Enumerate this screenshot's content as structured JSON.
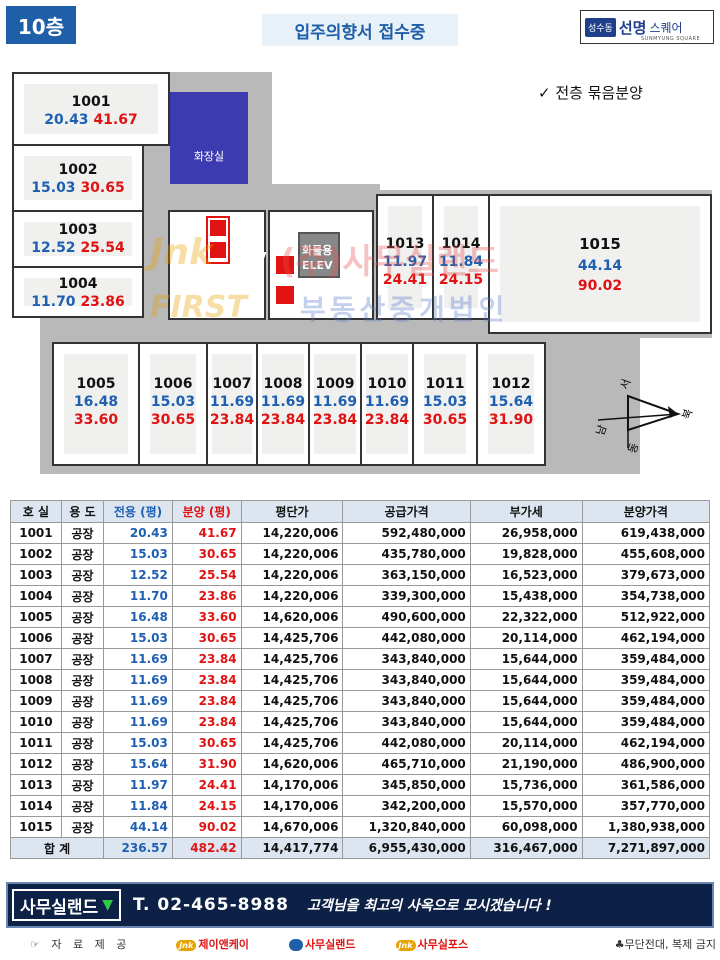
{
  "header": {
    "floor_badge": "10층",
    "notice": "입주의향서 접수중",
    "brand_tag": "성수동",
    "brand_name": "선명",
    "brand_suffix": "스퀘어",
    "brand_sub": "SUNMYUNG SQUARE"
  },
  "plan": {
    "note": "✓  전층 묶음분양",
    "restroom_label": "화장실",
    "elev_label": "ELEV",
    "freight_label_1": "화물용",
    "freight_label_2": "ELEV",
    "units": [
      {
        "no": "1001",
        "area": "20.43",
        "sale": "41.67"
      },
      {
        "no": "1002",
        "area": "15.03",
        "sale": "30.65"
      },
      {
        "no": "1003",
        "area": "12.52",
        "sale": "25.54"
      },
      {
        "no": "1004",
        "area": "11.70",
        "sale": "23.86"
      },
      {
        "no": "1005",
        "area": "16.48",
        "sale": "33.60"
      },
      {
        "no": "1006",
        "area": "15.03",
        "sale": "30.65"
      },
      {
        "no": "1007",
        "area": "11.69",
        "sale": "23.84"
      },
      {
        "no": "1008",
        "area": "11.69",
        "sale": "23.84"
      },
      {
        "no": "1009",
        "area": "11.69",
        "sale": "23.84"
      },
      {
        "no": "1010",
        "area": "11.69",
        "sale": "23.84"
      },
      {
        "no": "1011",
        "area": "15.03",
        "sale": "30.65"
      },
      {
        "no": "1012",
        "area": "15.64",
        "sale": "31.90"
      },
      {
        "no": "1013",
        "area": "11.97",
        "sale": "24.41"
      },
      {
        "no": "1014",
        "area": "11.84",
        "sale": "24.15"
      },
      {
        "no": "1015",
        "area": "44.14",
        "sale": "90.02"
      }
    ],
    "compass": {
      "n": "북",
      "s": "남",
      "e": "동",
      "w": "서"
    },
    "watermark_1": "(주)사무실랜드",
    "watermark_2": "부동산중개법인",
    "watermark_logo": "Jnk",
    "watermark_logo2": "FIRST"
  },
  "table": {
    "headers": [
      "호 실",
      "용 도",
      "전용 (평)",
      "분양 (평)",
      "평단가",
      "공급가격",
      "부가세",
      "분양가격"
    ],
    "rows": [
      [
        "1001",
        "공장",
        "20.43",
        "41.67",
        "14,220,006",
        "592,480,000",
        "26,958,000",
        "619,438,000"
      ],
      [
        "1002",
        "공장",
        "15.03",
        "30.65",
        "14,220,006",
        "435,780,000",
        "19,828,000",
        "455,608,000"
      ],
      [
        "1003",
        "공장",
        "12.52",
        "25.54",
        "14,220,006",
        "363,150,000",
        "16,523,000",
        "379,673,000"
      ],
      [
        "1004",
        "공장",
        "11.70",
        "23.86",
        "14,220,006",
        "339,300,000",
        "15,438,000",
        "354,738,000"
      ],
      [
        "1005",
        "공장",
        "16.48",
        "33.60",
        "14,620,006",
        "490,600,000",
        "22,322,000",
        "512,922,000"
      ],
      [
        "1006",
        "공장",
        "15.03",
        "30.65",
        "14,425,706",
        "442,080,000",
        "20,114,000",
        "462,194,000"
      ],
      [
        "1007",
        "공장",
        "11.69",
        "23.84",
        "14,425,706",
        "343,840,000",
        "15,644,000",
        "359,484,000"
      ],
      [
        "1008",
        "공장",
        "11.69",
        "23.84",
        "14,425,706",
        "343,840,000",
        "15,644,000",
        "359,484,000"
      ],
      [
        "1009",
        "공장",
        "11.69",
        "23.84",
        "14,425,706",
        "343,840,000",
        "15,644,000",
        "359,484,000"
      ],
      [
        "1010",
        "공장",
        "11.69",
        "23.84",
        "14,425,706",
        "343,840,000",
        "15,644,000",
        "359,484,000"
      ],
      [
        "1011",
        "공장",
        "15.03",
        "30.65",
        "14,425,706",
        "442,080,000",
        "20,114,000",
        "462,194,000"
      ],
      [
        "1012",
        "공장",
        "15.64",
        "31.90",
        "14,620,006",
        "465,710,000",
        "21,190,000",
        "486,900,000"
      ],
      [
        "1013",
        "공장",
        "11.97",
        "24.41",
        "14,170,006",
        "345,850,000",
        "15,736,000",
        "361,586,000"
      ],
      [
        "1014",
        "공장",
        "11.84",
        "24.15",
        "14,170,006",
        "342,200,000",
        "15,570,000",
        "357,770,000"
      ],
      [
        "1015",
        "공장",
        "44.14",
        "90.02",
        "14,670,006",
        "1,320,840,000",
        "60,098,000",
        "1,380,938,000"
      ]
    ],
    "total": [
      "합   계",
      "236.57",
      "482.42",
      "14,417,774",
      "6,955,430,000",
      "316,467,000",
      "7,271,897,000"
    ]
  },
  "footer": {
    "brand": "사무실랜드",
    "tel": "T. 02-465-8988",
    "slogan": "고객님을 최고의 사옥으로 모시겠습니다 !",
    "source_label": "☞ 자 료 제 공",
    "credit_1": "제이앤케이",
    "credit_1_logo": "Jnk",
    "credit_2": "사무실랜드",
    "credit_3": "사무실포스",
    "credit_3_logo": "Jnk",
    "copyright": "♣무단전대, 복제 금지"
  },
  "colors": {
    "blue": "#1f5fb2",
    "red": "#e01212",
    "navy": "#0d2147",
    "badge": "#1f5fa8"
  }
}
